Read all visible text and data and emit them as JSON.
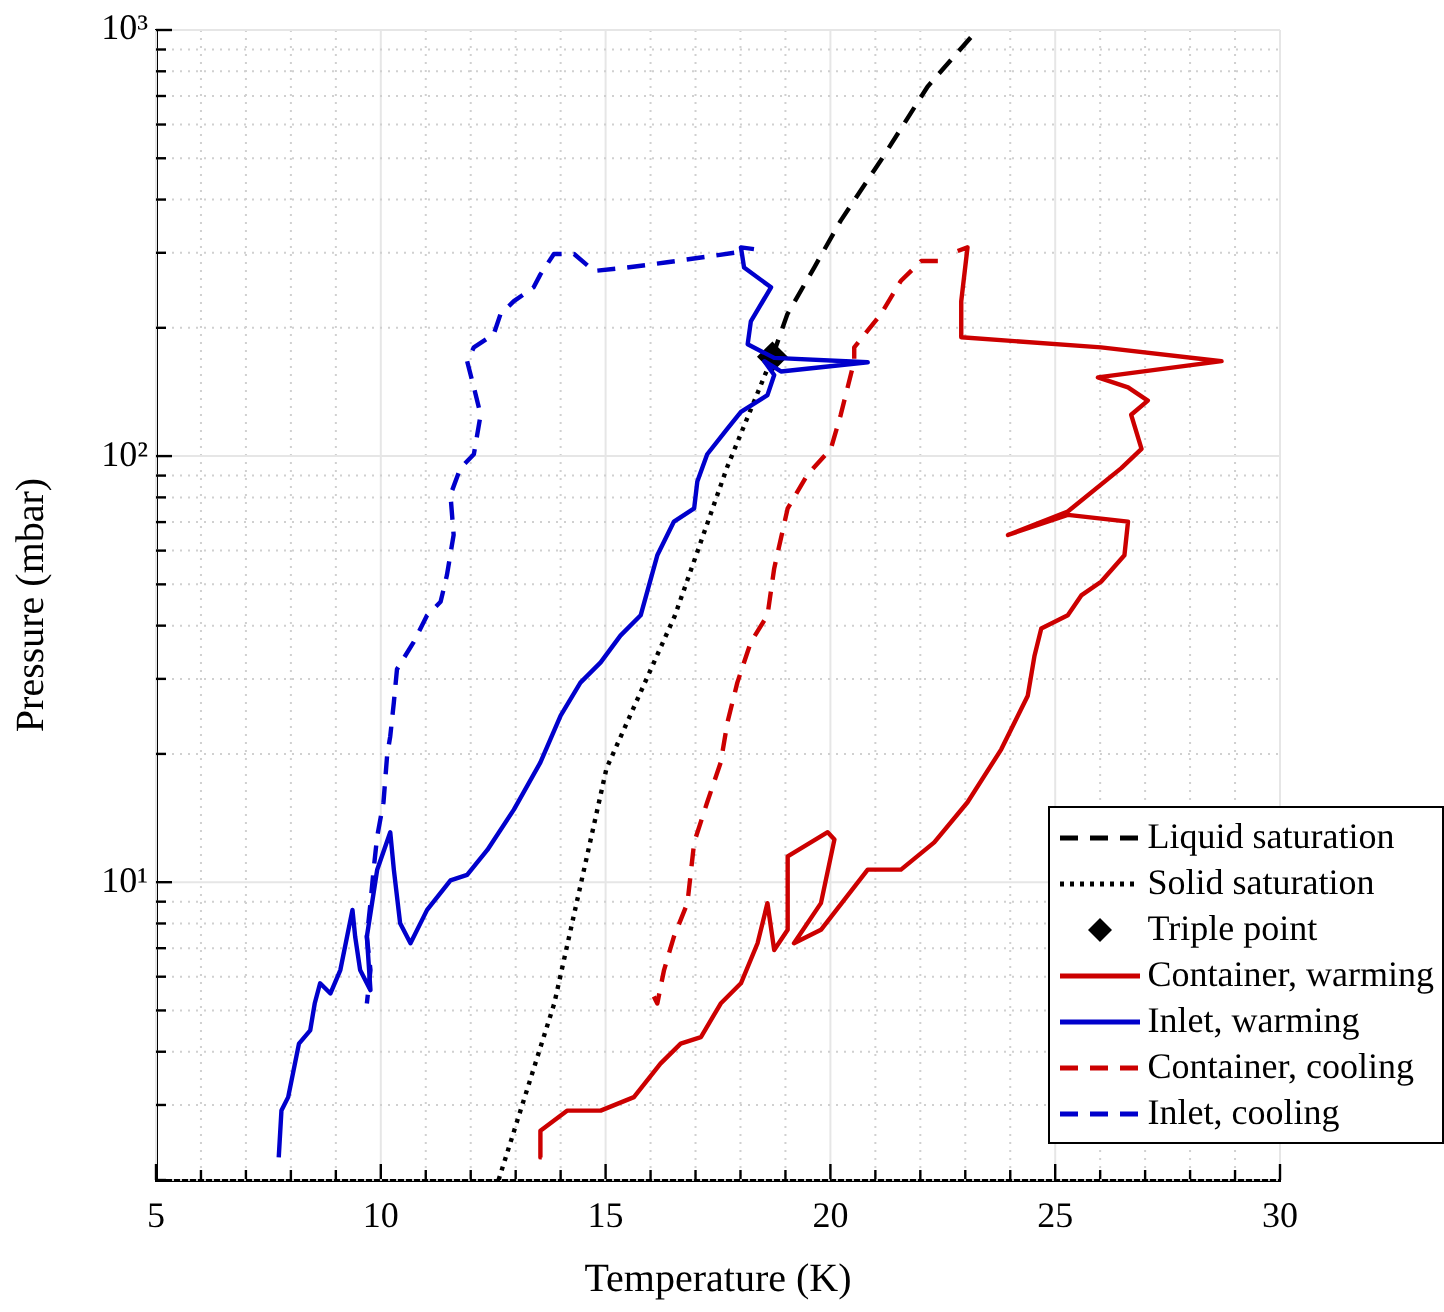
{
  "chart_data": {
    "type": "line",
    "xlabel": "Temperature (K)",
    "ylabel": "Pressure (mbar)",
    "log": "y",
    "grid": true,
    "legend": "bottom right",
    "xlim": [
      5,
      30
    ],
    "ylim": [
      2,
      1000
    ],
    "xticks": [
      5,
      {
        "value": 6,
        "label": null
      },
      {
        "value": 7,
        "label": null
      },
      {
        "value": 8,
        "label": null
      },
      {
        "value": 9,
        "label": null
      },
      10,
      {
        "value": 11,
        "label": null
      },
      {
        "value": 12,
        "label": null
      },
      {
        "value": 13,
        "label": null
      },
      {
        "value": 14,
        "label": null
      },
      15,
      {
        "value": 16,
        "label": null
      },
      {
        "value": 17,
        "label": null
      },
      {
        "value": 18,
        "label": null
      },
      {
        "value": 19,
        "label": null
      },
      20,
      {
        "value": 21,
        "label": null
      },
      {
        "value": 22,
        "label": null
      },
      {
        "value": 23,
        "label": null
      },
      {
        "value": 24,
        "label": null
      },
      25,
      {
        "value": 26,
        "label": null
      },
      {
        "value": 27,
        "label": null
      },
      {
        "value": 28,
        "label": null
      },
      {
        "value": 29,
        "label": null
      },
      30
    ],
    "yticks": [
      {
        "value": 2,
        "label": null
      },
      {
        "value": 3,
        "label": null
      },
      {
        "value": 4,
        "label": null
      },
      {
        "value": 5,
        "label": null
      },
      {
        "value": 6,
        "label": null
      },
      {
        "value": 7,
        "label": null
      },
      {
        "value": 8,
        "label": null
      },
      {
        "value": 9,
        "label": null
      },
      {
        "value": 10,
        "label": "10¹"
      },
      {
        "value": 20,
        "label": null
      },
      {
        "value": 30,
        "label": null
      },
      {
        "value": 40,
        "label": null
      },
      {
        "value": 50,
        "label": null
      },
      {
        "value": 60,
        "label": null
      },
      {
        "value": 70,
        "label": null
      },
      {
        "value": 80,
        "label": null
      },
      {
        "value": 90,
        "label": null
      },
      {
        "value": 100,
        "label": "10²"
      },
      {
        "value": 200,
        "label": null
      },
      {
        "value": 300,
        "label": null
      },
      {
        "value": 400,
        "label": null
      },
      {
        "value": 500,
        "label": null
      },
      {
        "value": 600,
        "label": null
      },
      {
        "value": 700,
        "label": null
      },
      {
        "value": 800,
        "label": null
      },
      {
        "value": 900,
        "label": null
      },
      {
        "value": 1000,
        "label": "10³"
      }
    ],
    "series": [
      {
        "name": "Liquid saturation",
        "type": "line",
        "color": "#000000",
        "line_style": "dashed",
        "marker": "none",
        "x": [
          18.71,
          19.04,
          19.64,
          20.23,
          21.12,
          22.16,
          23.2
        ],
        "values": [
          171,
          215,
          277,
          357,
          494,
          736,
          982
        ]
      },
      {
        "name": "Solid saturation",
        "type": "line",
        "color": "#000000",
        "line_style": "dotted",
        "marker": "none",
        "x": [
          12.62,
          13.86,
          15.02,
          16.54,
          17.7,
          18.71
        ],
        "values": [
          2,
          5.2,
          18.5,
          42.2,
          94,
          171
        ]
      },
      {
        "name": "Triple point",
        "type": "scatter",
        "color": "#000000",
        "marker": "diamond",
        "x": [
          18.71
        ],
        "values": [
          171
        ]
      },
      {
        "name": "Container, warming",
        "type": "line",
        "color": "#cc0000",
        "line_style": "solid",
        "marker": "none",
        "x": [
          13.58,
          13.55,
          14.15,
          14.89,
          15.63,
          16.22,
          16.67,
          17.12,
          17.56,
          18.01,
          18.38,
          18.6,
          18.75,
          19.05,
          19.05,
          19.94,
          20.09,
          19.79,
          19.19,
          19.79,
          20.83,
          21.57,
          22.31,
          23.05,
          23.8,
          24.39,
          24.54,
          24.69,
          25.28,
          25.58,
          26.02,
          26.54,
          26.62,
          25.28,
          23.95,
          25.28,
          26.47,
          26.92,
          26.69,
          27.06,
          26.62,
          25.95,
          28.7,
          26.02,
          22.91,
          22.91,
          23.05,
          22.83
        ],
        "values": [
          2.26,
          2.61,
          2.91,
          2.91,
          3.13,
          3.75,
          4.18,
          4.33,
          5.19,
          5.79,
          7.19,
          8.93,
          6.93,
          7.73,
          11.5,
          13.1,
          12.6,
          8.93,
          7.19,
          7.73,
          10.7,
          10.7,
          12.4,
          15.4,
          20.5,
          27.4,
          34,
          39.4,
          42.3,
          47.1,
          50.7,
          58.5,
          70.2,
          72.8,
          65.3,
          74.1,
          93.7,
          104,
          125,
          135,
          145,
          153,
          167,
          180,
          190,
          231,
          309,
          303
        ]
      },
      {
        "name": "Inlet, warming",
        "type": "line",
        "color": "#0000cc",
        "line_style": "solid",
        "marker": "none",
        "x": [
          7.73,
          7.79,
          7.94,
          8.09,
          8.18,
          8.43,
          8.53,
          8.65,
          8.88,
          9.1,
          9.37,
          9.43,
          9.54,
          9.77,
          9.69,
          9.92,
          10.21,
          10.29,
          10.43,
          10.66,
          11.03,
          11.55,
          11.92,
          12.37,
          12.96,
          13.55,
          14,
          14.44,
          14.89,
          15.33,
          15.78,
          16.15,
          16.52,
          16.97,
          17.04,
          17.26,
          17.71,
          18.01,
          18.6,
          18.75,
          18.53,
          18.9,
          20.83,
          18.75,
          18.16,
          18.23,
          18.68,
          18.08,
          18.01,
          18.3
        ],
        "values": [
          2.26,
          2.91,
          3.13,
          3.75,
          4.18,
          4.49,
          5.19,
          5.79,
          5.48,
          6.22,
          8.61,
          7.45,
          6.22,
          5.58,
          7.45,
          10.7,
          13.1,
          10.7,
          8.01,
          7.19,
          8.61,
          10.1,
          10.4,
          11.9,
          14.8,
          19.1,
          24.6,
          29.4,
          32.8,
          37.9,
          42.3,
          58.5,
          70.2,
          75.4,
          87.2,
          101,
          116,
          127,
          139,
          155,
          167,
          158,
          166,
          170,
          183,
          207,
          249,
          277,
          309,
          306
        ]
      },
      {
        "name": "Container, cooling",
        "type": "line",
        "color": "#cc0000",
        "line_style": "dashed",
        "marker": "none",
        "x": [
          22.39,
          22.02,
          21.57,
          21.12,
          20.53,
          20.53,
          20.23,
          20.01,
          19.49,
          19.05,
          18.75,
          18.6,
          18.23,
          17.93,
          17.71,
          17.56,
          17.26,
          16.97,
          16.82,
          16.52,
          16.3,
          16.15,
          16
        ],
        "values": [
          287,
          287,
          258,
          215,
          180,
          167,
          125,
          104,
          90.4,
          75.4,
          54.5,
          42.3,
          36.6,
          29.4,
          23.7,
          19.1,
          15.4,
          12.4,
          8.93,
          7.45,
          6.22,
          5.19,
          5.58
        ]
      },
      {
        "name": "Inlet, cooling",
        "type": "line",
        "color": "#0000cc",
        "line_style": "dashed",
        "marker": "none",
        "x": [
          17.86,
          16.37,
          15.48,
          14.74,
          14.3,
          13.85,
          13.55,
          13.4,
          12.96,
          12.66,
          12.51,
          12.07,
          11.92,
          12.07,
          12.22,
          12.07,
          11.77,
          11.55,
          11.62,
          11.47,
          11.33,
          11.03,
          10.73,
          10.36,
          10.29,
          10.21,
          10.14,
          10.06,
          9.92,
          9.84,
          9.77,
          9.69,
          9.77,
          9.69
        ],
        "values": [
          300,
          285,
          277,
          272,
          298,
          298,
          267,
          249,
          231,
          215,
          193,
          180,
          167,
          145,
          125,
          101,
          93.7,
          81.1,
          65.3,
          52.5,
          45.5,
          42.3,
          36.6,
          31.6,
          26.4,
          22,
          19.8,
          15.4,
          12.8,
          10.7,
          8.93,
          7.45,
          6.22,
          5.19
        ]
      }
    ]
  }
}
